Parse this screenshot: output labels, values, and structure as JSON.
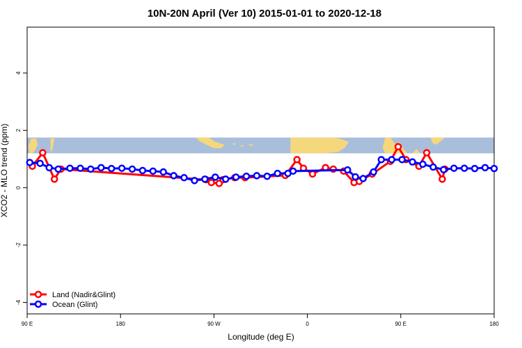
{
  "chart_data": {
    "type": "line",
    "title": "10N-20N April (Ver 10)   2015-01-01 to 2020-12-18",
    "xlabel": "Longitude (deg E)",
    "ylabel": "XCO2 - MLO trend (ppm)",
    "xlim": [
      -90,
      270
    ],
    "ylim": [
      -4.4,
      5.6
    ],
    "xticks": [
      {
        "value": -90,
        "label": "90 E"
      },
      {
        "value": -18,
        "label": "180"
      },
      {
        "value": 54,
        "label": "90 W"
      },
      {
        "value": 126,
        "label": "0"
      },
      {
        "value": 198,
        "label": "90 E"
      },
      {
        "value": 270,
        "label": "180"
      }
    ],
    "yticks": [
      {
        "value": -4,
        "label": "-4"
      },
      {
        "value": -2,
        "label": "-2"
      },
      {
        "value": 0,
        "label": "0"
      },
      {
        "value": 2,
        "label": "2"
      },
      {
        "value": 4,
        "label": "4"
      }
    ],
    "legend_position": "bottom-left",
    "map_strip": {
      "y_from": 1.2,
      "y_to": 1.75,
      "ocean_color": "#a8bedb",
      "land_color": "#f5d77c"
    },
    "series": [
      {
        "name": "Land (Nadir&Glint)",
        "color": "#ff0000",
        "points": [
          [
            -86,
            0.75
          ],
          [
            -78,
            1.22
          ],
          [
            -69,
            0.3
          ],
          [
            -64,
            0.65
          ],
          [
            48,
            0.28
          ],
          [
            52,
            0.18
          ],
          [
            58,
            0.15
          ],
          [
            61,
            0.28
          ],
          [
            70,
            0.35
          ],
          [
            78,
            0.35
          ],
          [
            109,
            0.43
          ],
          [
            118,
            0.98
          ],
          [
            123,
            0.68
          ],
          [
            130,
            0.48
          ],
          [
            140,
            0.7
          ],
          [
            146,
            0.65
          ],
          [
            154,
            0.58
          ],
          [
            162,
            0.18
          ],
          [
            166,
            0.22
          ],
          [
            176,
            0.48
          ],
          [
            190,
            0.92
          ],
          [
            196,
            1.43
          ],
          [
            202,
            0.98
          ],
          [
            212,
            0.75
          ],
          [
            218,
            1.22
          ],
          [
            230,
            0.3
          ],
          [
            232,
            0.65
          ]
        ]
      },
      {
        "name": "Ocean (Glint)",
        "color": "#0000ff",
        "points": [
          [
            -88,
            0.88
          ],
          [
            -80,
            0.85
          ],
          [
            -73,
            0.7
          ],
          [
            -66,
            0.65
          ],
          [
            -57,
            0.68
          ],
          [
            -49,
            0.68
          ],
          [
            -41,
            0.65
          ],
          [
            -33,
            0.7
          ],
          [
            -25,
            0.67
          ],
          [
            -17,
            0.68
          ],
          [
            -9,
            0.65
          ],
          [
            -1,
            0.6
          ],
          [
            7,
            0.58
          ],
          [
            15,
            0.55
          ],
          [
            23,
            0.42
          ],
          [
            31,
            0.35
          ],
          [
            39,
            0.25
          ],
          [
            47,
            0.3
          ],
          [
            55,
            0.37
          ],
          [
            63,
            0.3
          ],
          [
            71,
            0.37
          ],
          [
            79,
            0.4
          ],
          [
            87,
            0.42
          ],
          [
            95,
            0.4
          ],
          [
            103,
            0.5
          ],
          [
            111,
            0.5
          ],
          [
            115,
            0.58
          ],
          [
            157,
            0.62
          ],
          [
            163,
            0.38
          ],
          [
            169,
            0.32
          ],
          [
            177,
            0.55
          ],
          [
            183,
            0.98
          ],
          [
            191,
            0.98
          ],
          [
            199,
            0.98
          ],
          [
            207,
            0.9
          ],
          [
            215,
            0.82
          ],
          [
            223,
            0.72
          ],
          [
            231,
            0.63
          ],
          [
            239,
            0.68
          ],
          [
            247,
            0.68
          ],
          [
            255,
            0.67
          ],
          [
            263,
            0.7
          ],
          [
            270,
            0.67
          ]
        ]
      }
    ]
  }
}
